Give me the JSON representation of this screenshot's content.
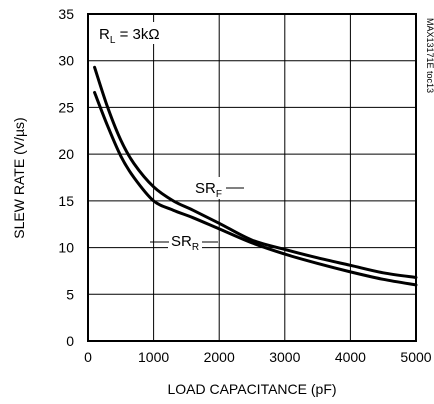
{
  "chart_data": {
    "type": "line",
    "title": "",
    "xlabel": "LOAD CAPACITANCE (pF)",
    "ylabel": "SLEW RATE (V/µs)",
    "xlim": [
      0,
      5000
    ],
    "ylim": [
      0,
      35
    ],
    "x_ticks": [
      0,
      1000,
      2000,
      3000,
      4000,
      5000
    ],
    "y_ticks": [
      0,
      5,
      10,
      15,
      20,
      25,
      30,
      35
    ],
    "grid": true,
    "legend": "none",
    "series": [
      {
        "name": "SRF",
        "x": [
          100,
          300,
          500,
          700,
          1000,
          1300,
          1600,
          2000,
          2500,
          3000,
          3500,
          4000,
          4500,
          5000
        ],
        "values": [
          29.3,
          25.0,
          21.5,
          19.0,
          16.5,
          15.0,
          14.0,
          12.6,
          10.8,
          9.8,
          8.9,
          8.1,
          7.3,
          6.8
        ]
      },
      {
        "name": "SRR",
        "x": [
          100,
          300,
          500,
          700,
          1000,
          1300,
          1600,
          2000,
          2500,
          3000,
          3500,
          4000,
          4500,
          5000
        ],
        "values": [
          26.6,
          23.0,
          19.8,
          17.5,
          15.0,
          14.0,
          13.2,
          12.0,
          10.5,
          9.3,
          8.3,
          7.4,
          6.6,
          6.0
        ]
      }
    ],
    "annotations": {
      "condition_main": "R",
      "condition_sub": "L",
      "condition_rest": " = 3kΩ",
      "srf_main": "SR",
      "srf_sub": "F",
      "srr_main": "SR",
      "srr_sub": "R",
      "side_note": "MAX13171E toc13"
    }
  }
}
